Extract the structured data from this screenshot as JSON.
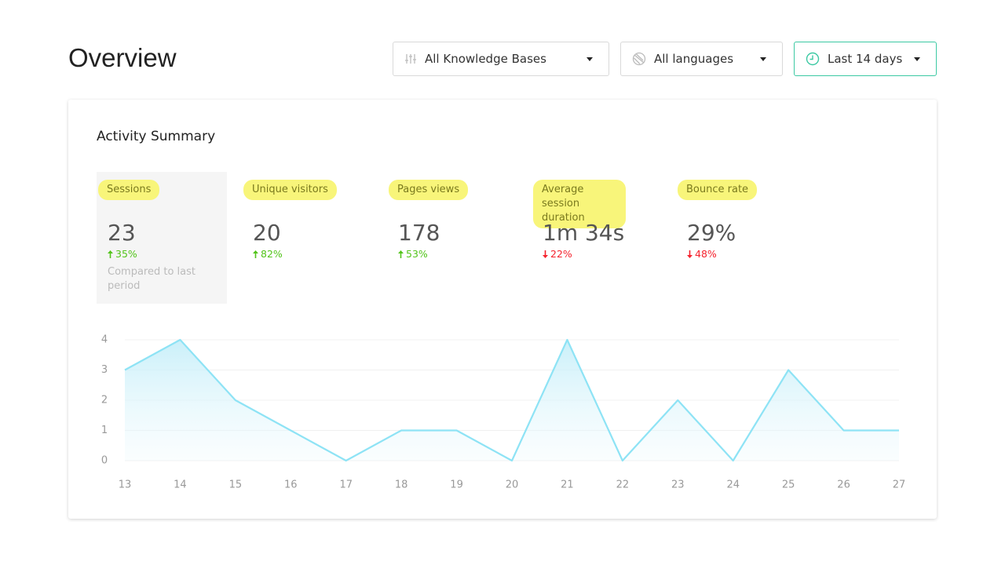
{
  "header": {
    "title": "Overview"
  },
  "filters": [
    {
      "label": "All Knowledge Bases",
      "icon": "sliders"
    },
    {
      "label": "All languages",
      "icon": "globe"
    },
    {
      "label": "Last 14 days",
      "icon": "clock",
      "active": true
    }
  ],
  "summary": {
    "title": "Activity Summary",
    "note": "Compared to last period",
    "metrics": [
      {
        "label": "Sessions",
        "value": "23",
        "change": "35%",
        "direction": "up",
        "selected": true
      },
      {
        "label": "Unique visitors",
        "value": "20",
        "change": "82%",
        "direction": "up"
      },
      {
        "label": "Pages views",
        "value": "178",
        "change": "53%",
        "direction": "up"
      },
      {
        "label": "Average session duration",
        "value": "1m 34s",
        "change": "22%",
        "direction": "down"
      },
      {
        "label": "Bounce rate",
        "value": "29%",
        "change": "48%",
        "direction": "down"
      }
    ]
  },
  "chart_data": {
    "type": "area",
    "x": [
      13,
      14,
      15,
      16,
      17,
      18,
      19,
      20,
      21,
      22,
      23,
      24,
      25,
      26,
      27
    ],
    "values": [
      3,
      4,
      2,
      1,
      0,
      1,
      1,
      0,
      4,
      0,
      2,
      0,
      3,
      1,
      1
    ],
    "color": "#8ee3f5",
    "xlim": [
      13,
      27
    ],
    "xticks": [
      13,
      14,
      15,
      16,
      17,
      18,
      19,
      20,
      21,
      22,
      23,
      24,
      25,
      26,
      27
    ],
    "ylim": [
      0,
      4
    ],
    "yticks": [
      0,
      1,
      2,
      3,
      4
    ],
    "grid": true
  }
}
